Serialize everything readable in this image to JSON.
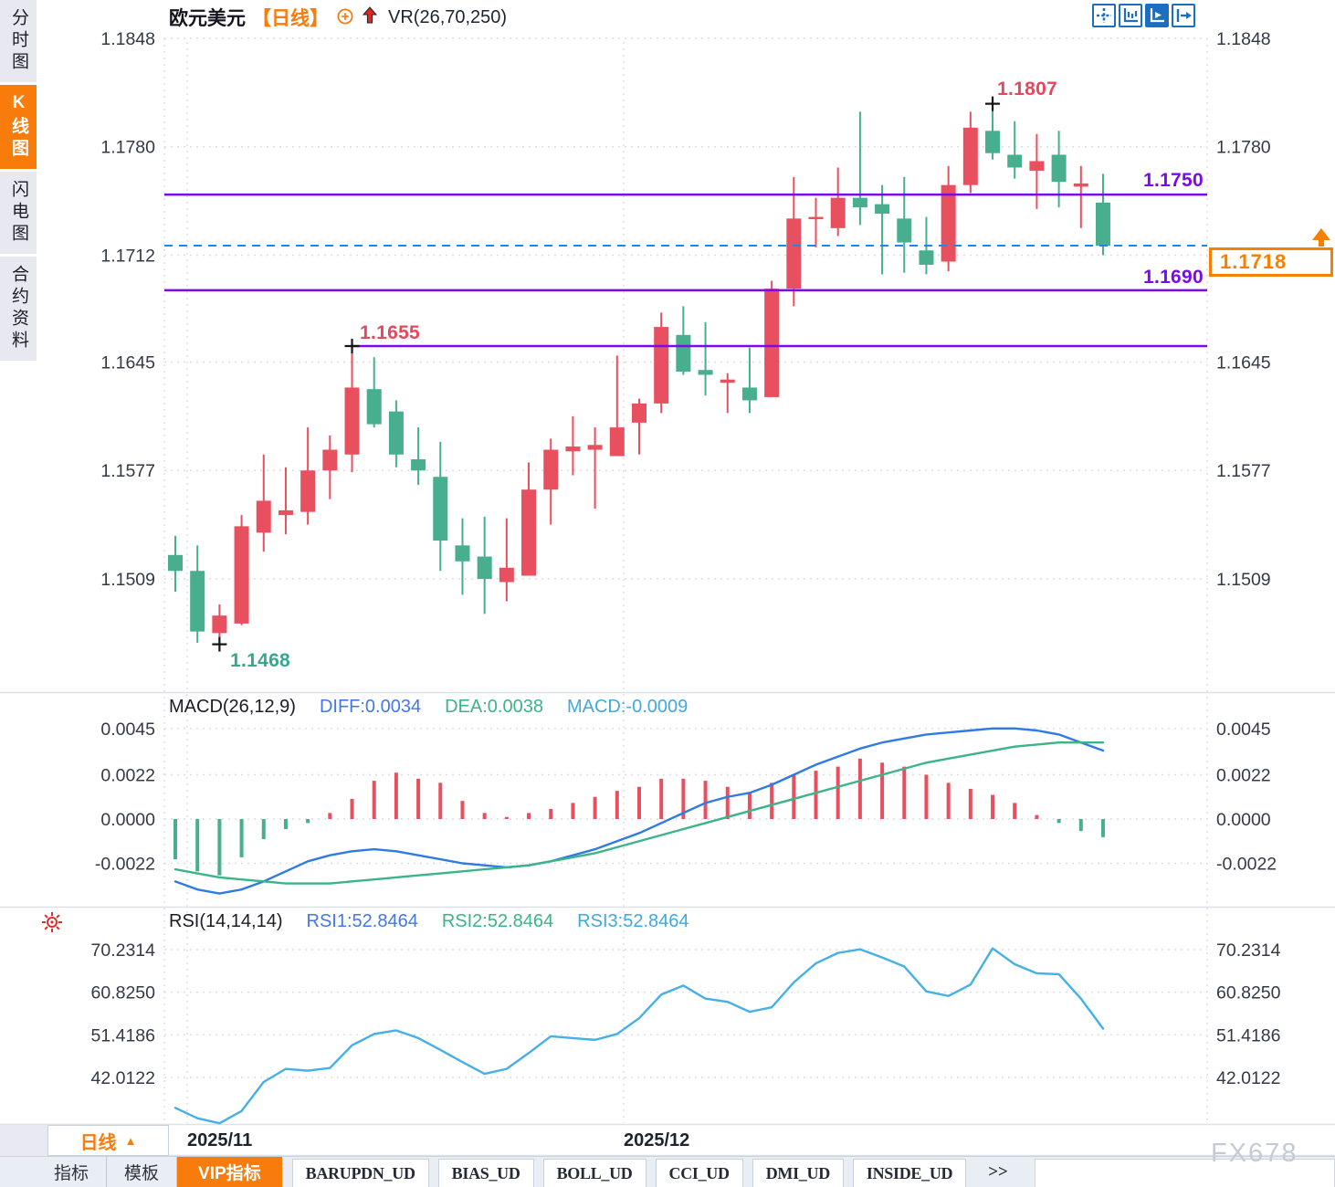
{
  "header": {
    "symbol": "欧元美元",
    "period_tag": "【日线】",
    "indicator": "VR(26,70,250)"
  },
  "sidebar": {
    "items": [
      {
        "label": "分时图",
        "active": false
      },
      {
        "label": "K线图",
        "active": true
      },
      {
        "label": "闪电图",
        "active": false
      },
      {
        "label": "合约资料",
        "active": false
      }
    ]
  },
  "toolbar": {
    "icons": [
      "crosshair-icon",
      "axis-range-icon",
      "auto-fit-icon",
      "pan-right-icon"
    ]
  },
  "annotations": {
    "high": "1.1807",
    "swing": "1.1655",
    "low": "1.1468",
    "resistance": "1.1750",
    "support": "1.1690"
  },
  "price_box": {
    "value": "1.1718"
  },
  "macd_panel": {
    "title": "MACD(26,12,9)",
    "diff": "DIFF:0.0034",
    "dea": "DEA:0.0038",
    "macd": "MACD:-0.0009"
  },
  "rsi_panel": {
    "title": "RSI(14,14,14)",
    "rsi1": "RSI1:52.8464",
    "rsi2": "RSI2:52.8464",
    "rsi3": "RSI3:52.8464"
  },
  "x_axis": {
    "months": [
      {
        "label": "2025/11",
        "x": 205
      },
      {
        "label": "2025/12",
        "x": 683
      }
    ]
  },
  "period_button": {
    "label": "日线",
    "arrow": "▲"
  },
  "bottom_bar": {
    "tabs": [
      {
        "label": "指标",
        "style": "plain"
      },
      {
        "label": "模板",
        "style": "plain"
      },
      {
        "label": "VIP指标",
        "style": "vip"
      },
      {
        "label": "BARUPDN_UD",
        "style": "boxed"
      },
      {
        "label": "BIAS_UD",
        "style": "boxed"
      },
      {
        "label": "BOLL_UD",
        "style": "boxed"
      },
      {
        "label": "CCI_UD",
        "style": "boxed"
      },
      {
        "label": "DMI_UD",
        "style": "boxed"
      },
      {
        "label": "INSIDE_UD",
        "style": "boxed"
      },
      {
        "label": ">>",
        "style": "more"
      }
    ]
  },
  "watermark": "FX678",
  "colors": {
    "up": "#e8505f",
    "down": "#47af8e",
    "level": "#7c08ee",
    "current_line": "#1f87e8",
    "accent_orange": "#f87c0b",
    "diff_line": "#2f7ae5",
    "dea_line": "#3cb487",
    "rsi_line": "#45b0e8",
    "toolbar_blue": "#1b6ec2"
  },
  "chart_data": [
    {
      "type": "candlestick",
      "title": "欧元美元 日线 (EUR/USD Daily)",
      "x_labels": [
        "2025/11",
        "2025/12"
      ],
      "y_ticks": [
        "1.1848",
        "1.1780",
        "1.1712",
        "1.1645",
        "1.1577",
        "1.1509"
      ],
      "ylim": [
        1.1448,
        1.1848
      ],
      "up_color": "#e8505f",
      "down_color": "#47af8e",
      "levels": [
        {
          "price": 1.175,
          "label": "1.1750"
        },
        {
          "price": 1.169,
          "label": "1.1690"
        },
        {
          "price": 1.1655,
          "label": "1.1655",
          "from_candle": 8
        }
      ],
      "current_price": 1.1718,
      "markers": [
        {
          "candle": 2,
          "price": 1.1468,
          "type": "low"
        },
        {
          "candle": 8,
          "price": 1.1655,
          "type": "high"
        },
        {
          "candle": 37,
          "price": 1.1807,
          "type": "high"
        }
      ],
      "candles": [
        [
          1.1524,
          1.1536,
          1.1501,
          1.1514
        ],
        [
          1.1514,
          1.153,
          1.1469,
          1.1476
        ],
        [
          1.1475,
          1.1493,
          1.1468,
          1.1486
        ],
        [
          1.1481,
          1.1549,
          1.148,
          1.1542
        ],
        [
          1.1538,
          1.1587,
          1.1526,
          1.1558
        ],
        [
          1.1549,
          1.1579,
          1.1537,
          1.1552
        ],
        [
          1.1551,
          1.1604,
          1.1543,
          1.1577
        ],
        [
          1.1577,
          1.1599,
          1.1559,
          1.159
        ],
        [
          1.1587,
          1.1655,
          1.1576,
          1.1629
        ],
        [
          1.1628,
          1.1648,
          1.1604,
          1.1606
        ],
        [
          1.1614,
          1.1621,
          1.1579,
          1.1587
        ],
        [
          1.1584,
          1.1604,
          1.1568,
          1.1577
        ],
        [
          1.1573,
          1.1595,
          1.1514,
          1.1533
        ],
        [
          1.153,
          1.1547,
          1.1499,
          1.152
        ],
        [
          1.1523,
          1.1548,
          1.1487,
          1.1509
        ],
        [
          1.1507,
          1.1547,
          1.1495,
          1.1516
        ],
        [
          1.1511,
          1.1582,
          1.1511,
          1.1565
        ],
        [
          1.1565,
          1.1597,
          1.1543,
          1.159
        ],
        [
          1.1589,
          1.1611,
          1.1574,
          1.1592
        ],
        [
          1.159,
          1.1604,
          1.1553,
          1.1593
        ],
        [
          1.1586,
          1.1649,
          1.1586,
          1.1604
        ],
        [
          1.1607,
          1.1622,
          1.1587,
          1.1619
        ],
        [
          1.1619,
          1.1676,
          1.1613,
          1.1667
        ],
        [
          1.1662,
          1.168,
          1.1637,
          1.1639
        ],
        [
          1.164,
          1.167,
          1.1624,
          1.1637
        ],
        [
          1.1632,
          1.1638,
          1.1613,
          1.1634
        ],
        [
          1.1629,
          1.1654,
          1.1613,
          1.1621
        ],
        [
          1.1623,
          1.1696,
          1.1623,
          1.1691
        ],
        [
          1.1691,
          1.1761,
          1.168,
          1.1735
        ],
        [
          1.1735,
          1.1748,
          1.1717,
          1.1736
        ],
        [
          1.1729,
          1.1767,
          1.1724,
          1.1748
        ],
        [
          1.1748,
          1.1802,
          1.1731,
          1.1742
        ],
        [
          1.1744,
          1.1756,
          1.17,
          1.1738
        ],
        [
          1.1735,
          1.1761,
          1.1701,
          1.172
        ],
        [
          1.1715,
          1.1736,
          1.17,
          1.1706
        ],
        [
          1.1708,
          1.1768,
          1.1702,
          1.1756
        ],
        [
          1.1756,
          1.1802,
          1.1751,
          1.1792
        ],
        [
          1.179,
          1.1807,
          1.1772,
          1.1776
        ],
        [
          1.1775,
          1.1796,
          1.176,
          1.1767
        ],
        [
          1.1765,
          1.1788,
          1.1741,
          1.1771
        ],
        [
          1.1775,
          1.179,
          1.1742,
          1.1758
        ],
        [
          1.1755,
          1.1768,
          1.1729,
          1.1757
        ],
        [
          1.1745,
          1.1763,
          1.1712,
          1.1718
        ]
      ]
    },
    {
      "type": "macd",
      "title": "MACD(26,12,9)",
      "y_ticks": [
        "0.0045",
        "0.0022",
        "0.0000",
        "-0.0022"
      ],
      "current": {
        "diff": 0.0034,
        "dea": 0.0038,
        "macd": -0.0009
      },
      "histogram": [
        -0.002,
        -0.0026,
        -0.0028,
        -0.0019,
        -0.001,
        -0.0005,
        -0.0002,
        0.0003,
        0.001,
        0.0019,
        0.0023,
        0.002,
        0.0018,
        0.0009,
        0.0003,
        0.0001,
        0.0003,
        0.0005,
        0.0008,
        0.0011,
        0.0014,
        0.0016,
        0.002,
        0.002,
        0.0019,
        0.0016,
        0.0013,
        0.0018,
        0.0022,
        0.0024,
        0.0026,
        0.003,
        0.0028,
        0.0026,
        0.0022,
        0.0018,
        0.0015,
        0.0012,
        0.0008,
        0.0002,
        -0.0002,
        -0.0006,
        -0.0009
      ],
      "diff": [
        -0.0031,
        -0.0035,
        -0.0037,
        -0.0035,
        -0.0031,
        -0.0026,
        -0.0021,
        -0.0018,
        -0.0016,
        -0.0015,
        -0.0016,
        -0.0018,
        -0.002,
        -0.0022,
        -0.0023,
        -0.0024,
        -0.0023,
        -0.0021,
        -0.0018,
        -0.0015,
        -0.0011,
        -0.0007,
        -0.0002,
        0.0003,
        0.0008,
        0.0011,
        0.0013,
        0.0017,
        0.0022,
        0.0027,
        0.0031,
        0.0035,
        0.0038,
        0.004,
        0.0042,
        0.0043,
        0.0044,
        0.0045,
        0.0045,
        0.0044,
        0.0042,
        0.0038,
        0.0034
      ],
      "dea": [
        -0.0025,
        -0.0027,
        -0.0029,
        -0.003,
        -0.0031,
        -0.0032,
        -0.0032,
        -0.0032,
        -0.0031,
        -0.003,
        -0.0029,
        -0.0028,
        -0.0027,
        -0.0026,
        -0.0025,
        -0.0024,
        -0.0023,
        -0.0021,
        -0.0019,
        -0.0017,
        -0.0014,
        -0.0011,
        -0.0008,
        -0.0005,
        -0.0002,
        0.0001,
        0.0004,
        0.0007,
        0.001,
        0.0013,
        0.0016,
        0.0019,
        0.0022,
        0.0025,
        0.0028,
        0.003,
        0.0032,
        0.0034,
        0.0036,
        0.0037,
        0.0038,
        0.0038,
        0.0038
      ]
    },
    {
      "type": "line",
      "title": "RSI(14,14,14)",
      "y_ticks": [
        "70.2314",
        "60.8250",
        "51.4186",
        "42.0122"
      ],
      "current": {
        "rsi1": 52.8464,
        "rsi2": 52.8464,
        "rsi3": 52.8464
      },
      "values": [
        35.3,
        33.0,
        31.9,
        34.6,
        41.0,
        43.9,
        43.5,
        44.1,
        49.1,
        51.6,
        52.4,
        50.7,
        48.1,
        45.4,
        42.8,
        43.9,
        47.4,
        51.1,
        50.7,
        50.3,
        51.6,
        55.1,
        60.3,
        62.3,
        59.4,
        58.7,
        56.5,
        57.5,
        63.0,
        67.2,
        69.5,
        70.3,
        68.5,
        66.5,
        61.0,
        60.0,
        62.5,
        70.5,
        67.0,
        65.0,
        64.8,
        59.4,
        52.8
      ]
    }
  ]
}
